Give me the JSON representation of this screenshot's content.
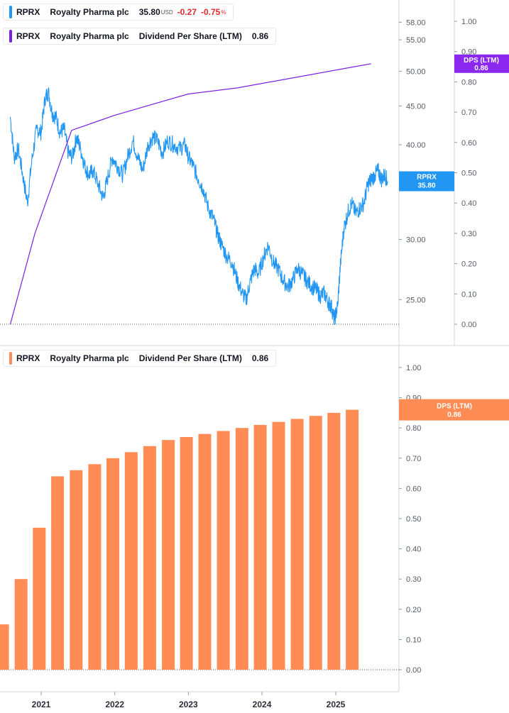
{
  "legend_price": {
    "ticker": "RPRX",
    "name": "Royalty Pharma plc",
    "price": "35.80",
    "currency": "USD",
    "change": "-0.27",
    "change_pct": "-0.75",
    "pct_sign": "%",
    "color": "#2196f3"
  },
  "legend_dps_line": {
    "ticker": "RPRX",
    "name": "Royalty Pharma plc",
    "metric": "Dividend Per Share (LTM)",
    "value": "0.86",
    "color": "#7b1fe0"
  },
  "legend_dps_bar": {
    "ticker": "RPRX",
    "name": "Royalty Pharma plc",
    "metric": "Dividend Per Share (LTM)",
    "value": "0.86",
    "color": "#ff8c55"
  },
  "chart_data": [
    {
      "type": "line",
      "panel": "top",
      "x_axis": {
        "labels": [
          "2021",
          "2022",
          "2023",
          "2024",
          "2025"
        ],
        "range": [
          "2020-08",
          "2025-10"
        ]
      },
      "y_axis_price": {
        "scale": "log",
        "range": [
          23.3,
          61
        ],
        "tick_labels": [
          "58.00",
          "55.00",
          "50.00",
          "45.00",
          "40.00",
          "30.00",
          "25.00"
        ]
      },
      "y_axis_dps": {
        "range": [
          0,
          1.07
        ],
        "tick_labels": [
          "1.00",
          "0.90",
          "0.80",
          "0.70",
          "0.60",
          "0.50",
          "0.40",
          "0.30",
          "0.20",
          "0.10",
          "0.00"
        ]
      },
      "series": [
        {
          "name": "RPRX",
          "color": "#2196f3",
          "axis": "price",
          "last_label": "RPRX",
          "last_value": "35.80",
          "points": [
            [
              "2020-08-01",
              43.5
            ],
            [
              "2020-08-20",
              38.5
            ],
            [
              "2020-09-10",
              39.5
            ],
            [
              "2020-10-05",
              36.0
            ],
            [
              "2020-10-25",
              33.5
            ],
            [
              "2020-11-15",
              38.0
            ],
            [
              "2020-12-10",
              42.0
            ],
            [
              "2021-01-01",
              41.5
            ],
            [
              "2021-01-20",
              46.0
            ],
            [
              "2021-02-05",
              47.0
            ],
            [
              "2021-02-25",
              44.0
            ],
            [
              "2021-03-15",
              43.5
            ],
            [
              "2021-04-05",
              41.5
            ],
            [
              "2021-04-25",
              42.0
            ],
            [
              "2021-05-15",
              39.0
            ],
            [
              "2021-06-05",
              38.5
            ],
            [
              "2021-06-25",
              41.0
            ],
            [
              "2021-07-15",
              39.5
            ],
            [
              "2021-08-05",
              37.5
            ],
            [
              "2021-08-25",
              36.5
            ],
            [
              "2021-09-15",
              37.0
            ],
            [
              "2021-10-10",
              35.5
            ],
            [
              "2021-11-05",
              34.0
            ],
            [
              "2021-11-25",
              36.0
            ],
            [
              "2021-12-20",
              38.5
            ],
            [
              "2022-01-15",
              37.5
            ],
            [
              "2022-02-10",
              36.5
            ],
            [
              "2022-03-05",
              38.5
            ],
            [
              "2022-04-01",
              40.5
            ],
            [
              "2022-04-25",
              38.5
            ],
            [
              "2022-05-20",
              37.0
            ],
            [
              "2022-06-15",
              40.0
            ],
            [
              "2022-07-10",
              41.0
            ],
            [
              "2022-08-01",
              40.5
            ],
            [
              "2022-08-25",
              39.0
            ],
            [
              "2022-09-20",
              40.5
            ],
            [
              "2022-10-20",
              40.0
            ],
            [
              "2022-11-20",
              39.5
            ],
            [
              "2022-12-15",
              40.0
            ],
            [
              "2023-01-01",
              38.5
            ],
            [
              "2023-01-25",
              37.5
            ],
            [
              "2023-02-20",
              36.0
            ],
            [
              "2023-03-15",
              35.0
            ],
            [
              "2023-04-10",
              33.0
            ],
            [
              "2023-05-05",
              32.0
            ],
            [
              "2023-05-25",
              30.5
            ],
            [
              "2023-06-15",
              29.5
            ],
            [
              "2023-07-10",
              28.5
            ],
            [
              "2023-08-05",
              28.0
            ],
            [
              "2023-09-01",
              26.5
            ],
            [
              "2023-09-25",
              25.5
            ],
            [
              "2023-10-15",
              25.0
            ],
            [
              "2023-11-05",
              26.5
            ],
            [
              "2023-11-25",
              27.5
            ],
            [
              "2023-12-15",
              27.0
            ],
            [
              "2024-01-10",
              28.5
            ],
            [
              "2024-02-01",
              29.5
            ],
            [
              "2024-02-25",
              28.0
            ],
            [
              "2024-03-20",
              27.5
            ],
            [
              "2024-04-15",
              26.5
            ],
            [
              "2024-05-10",
              26.0
            ],
            [
              "2024-06-01",
              26.5
            ],
            [
              "2024-06-25",
              27.5
            ],
            [
              "2024-07-20",
              27.0
            ],
            [
              "2024-08-10",
              26.5
            ],
            [
              "2024-09-05",
              26.0
            ],
            [
              "2024-09-25",
              25.8
            ],
            [
              "2024-10-15",
              25.3
            ],
            [
              "2024-11-05",
              25.5
            ],
            [
              "2024-11-25",
              24.8
            ],
            [
              "2024-12-10",
              24.5
            ],
            [
              "2024-12-25",
              23.5
            ],
            [
              "2025-01-10",
              24.5
            ],
            [
              "2025-01-25",
              28.0
            ],
            [
              "2025-02-10",
              31.0
            ],
            [
              "2025-03-01",
              32.5
            ],
            [
              "2025-03-20",
              33.5
            ],
            [
              "2025-04-10",
              32.5
            ],
            [
              "2025-04-30",
              33.0
            ],
            [
              "2025-05-20",
              33.5
            ],
            [
              "2025-06-10",
              35.5
            ],
            [
              "2025-06-25",
              36.0
            ],
            [
              "2025-07-15",
              36.5
            ],
            [
              "2025-07-30",
              37.0
            ],
            [
              "2025-08-15",
              36.0
            ],
            [
              "2025-09-01",
              36.5
            ],
            [
              "2025-09-15",
              35.8
            ]
          ]
        },
        {
          "name": "Dividend Per Share (LTM)",
          "color": "#7b1fe0",
          "axis": "dps",
          "last_label": "DPS (LTM)",
          "last_value": "0.86",
          "points": [
            [
              "2020-08-01",
              0.0
            ],
            [
              "2020-12-01",
              0.3
            ],
            [
              "2021-06-01",
              0.64
            ],
            [
              "2022-01-01",
              0.69
            ],
            [
              "2022-12-31",
              0.76
            ],
            [
              "2023-09-01",
              0.78
            ],
            [
              "2025-06-25",
              0.86
            ]
          ]
        }
      ]
    },
    {
      "type": "bar",
      "panel": "bottom",
      "y_axis": {
        "range": [
          0,
          1.07
        ],
        "tick_labels": [
          "1.00",
          "0.90",
          "0.80",
          "0.70",
          "0.60",
          "0.50",
          "0.40",
          "0.30",
          "0.20",
          "0.10",
          "0.00"
        ]
      },
      "x_axis": {
        "labels": [
          "2021",
          "2022",
          "2023",
          "2024",
          "2025"
        ]
      },
      "series": [
        {
          "name": "Dividend Per Share (LTM)",
          "color": "#ff8c55",
          "last_label": "DPS (LTM)",
          "last_value": "0.86",
          "points": [
            [
              "2020-09-30",
              0.15
            ],
            [
              "2020-12-31",
              0.3
            ],
            [
              "2021-03-31",
              0.47
            ],
            [
              "2021-06-30",
              0.64
            ],
            [
              "2021-09-30",
              0.66
            ],
            [
              "2021-12-31",
              0.68
            ],
            [
              "2022-03-31",
              0.7
            ],
            [
              "2022-06-30",
              0.72
            ],
            [
              "2022-09-30",
              0.74
            ],
            [
              "2022-12-31",
              0.76
            ],
            [
              "2023-03-31",
              0.77
            ],
            [
              "2023-06-30",
              0.78
            ],
            [
              "2023-09-30",
              0.79
            ],
            [
              "2023-12-31",
              0.8
            ],
            [
              "2024-03-31",
              0.81
            ],
            [
              "2024-06-30",
              0.82
            ],
            [
              "2024-09-30",
              0.83
            ],
            [
              "2024-12-31",
              0.84
            ],
            [
              "2025-03-31",
              0.85
            ],
            [
              "2025-06-30",
              0.86
            ]
          ]
        }
      ]
    }
  ]
}
